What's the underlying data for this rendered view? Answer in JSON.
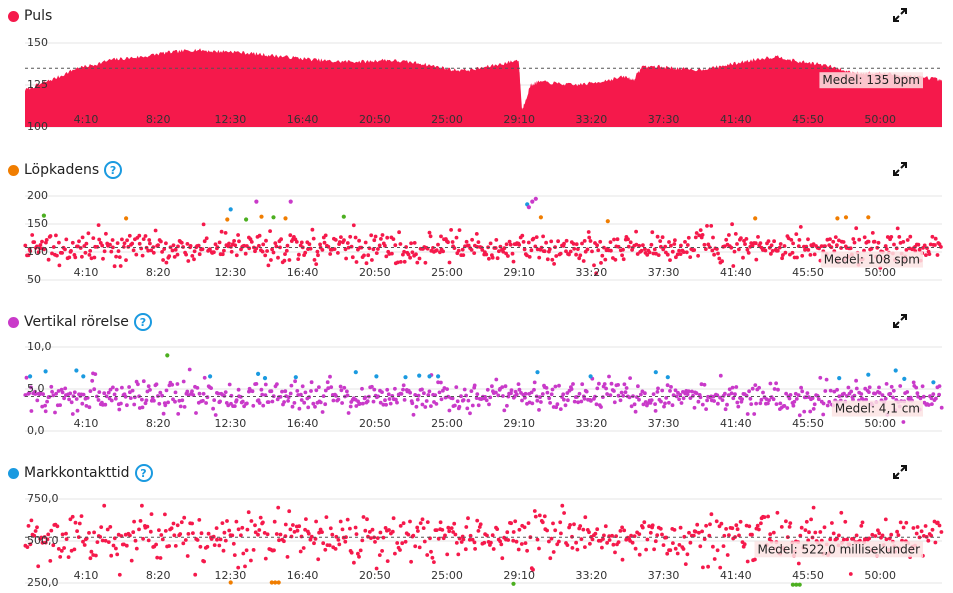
{
  "colors": {
    "red": "#f5194b",
    "orange": "#f07d00",
    "purple": "#c93ac9",
    "blue": "#1a9ae0",
    "green": "#4caf20",
    "grid": "#e4e4e4",
    "avg_line": "#555555",
    "avg_bg": "#fbe3e3"
  },
  "icons": {
    "help": "?",
    "expand": "expand-icon"
  },
  "x_ticks": [
    "4:10",
    "8:20",
    "12:30",
    "16:40",
    "20:50",
    "25:00",
    "29:10",
    "33:20",
    "37:30",
    "41:40",
    "45:50",
    "50:00"
  ],
  "chart_data": [
    {
      "id": "puls",
      "type": "area",
      "title": "Puls",
      "title_color": "#f5194b",
      "show_help": false,
      "xlim": [
        0,
        53.5
      ],
      "ylim": [
        100,
        150
      ],
      "y_ticks": [
        "150",
        "125",
        "100"
      ],
      "average": 135,
      "average_label": "Medel: 135 bpm",
      "series": [
        {
          "x": [
            0,
            1,
            2,
            3,
            4,
            5,
            6,
            7,
            8,
            9,
            10,
            11,
            12,
            13,
            14,
            15,
            16,
            17,
            18,
            19,
            20,
            21,
            22,
            23,
            24,
            25,
            26,
            27,
            28,
            28.8,
            29,
            29.5,
            30,
            31,
            32,
            33,
            34,
            35,
            35.5,
            36,
            37,
            38,
            39,
            40,
            41,
            42,
            43,
            44,
            45,
            46,
            47,
            48,
            49,
            50,
            51,
            52,
            53,
            53.5
          ],
          "y": [
            122,
            126,
            130,
            135,
            137,
            140,
            141,
            142,
            144,
            145,
            146,
            145,
            145,
            144,
            143,
            142,
            141,
            140,
            139,
            139,
            139,
            140,
            139,
            138,
            136,
            134,
            134,
            136,
            138,
            140,
            110,
            125,
            127,
            126,
            125,
            126,
            128,
            130,
            128,
            136,
            136,
            135,
            134,
            135,
            137,
            139,
            141,
            142,
            139,
            138,
            136,
            133,
            132,
            132,
            131,
            130,
            129,
            127
          ]
        }
      ]
    },
    {
      "id": "cadence",
      "type": "scatter",
      "title": "Löpkadens",
      "title_color": "#f07d00",
      "show_help": true,
      "xlim": [
        0,
        53.5
      ],
      "ylim": [
        50,
        200
      ],
      "y_ticks": [
        "200",
        "150",
        "100",
        "50"
      ],
      "average": 108,
      "average_label": "Medel: 108 spm",
      "spread": 14,
      "n_points": 720,
      "outliers": [
        {
          "x": 1.1,
          "y": 165,
          "color": "#4caf20"
        },
        {
          "x": 5.9,
          "y": 160,
          "color": "#f07d00"
        },
        {
          "x": 11.8,
          "y": 158,
          "color": "#f07d00"
        },
        {
          "x": 12.0,
          "y": 176,
          "color": "#1a9ae0"
        },
        {
          "x": 12.9,
          "y": 158,
          "color": "#4caf20"
        },
        {
          "x": 13.8,
          "y": 163,
          "color": "#f07d00"
        },
        {
          "x": 13.5,
          "y": 190,
          "color": "#c93ac9"
        },
        {
          "x": 14.5,
          "y": 162,
          "color": "#4caf20"
        },
        {
          "x": 15.2,
          "y": 160,
          "color": "#f07d00"
        },
        {
          "x": 15.5,
          "y": 190,
          "color": "#c93ac9"
        },
        {
          "x": 18.6,
          "y": 163,
          "color": "#4caf20"
        },
        {
          "x": 29.3,
          "y": 185,
          "color": "#1a9ae0"
        },
        {
          "x": 29.4,
          "y": 180,
          "color": "#c93ac9"
        },
        {
          "x": 29.6,
          "y": 190,
          "color": "#c93ac9"
        },
        {
          "x": 29.8,
          "y": 195,
          "color": "#c93ac9"
        },
        {
          "x": 30.1,
          "y": 162,
          "color": "#f07d00"
        },
        {
          "x": 34.0,
          "y": 155,
          "color": "#f07d00"
        },
        {
          "x": 42.6,
          "y": 160,
          "color": "#f07d00"
        },
        {
          "x": 47.4,
          "y": 160,
          "color": "#f07d00"
        },
        {
          "x": 47.9,
          "y": 162,
          "color": "#f07d00"
        },
        {
          "x": 49.2,
          "y": 162,
          "color": "#f07d00"
        }
      ]
    },
    {
      "id": "vertical",
      "type": "scatter",
      "title": "Vertikal rörelse",
      "title_color": "#c93ac9",
      "show_help": true,
      "xlim": [
        0,
        53.5
      ],
      "ylim": [
        0,
        10
      ],
      "y_ticks": [
        "10,0",
        "5,0",
        "0,0"
      ],
      "average": 4.1,
      "average_label": "Medel: 4,1 cm",
      "spread": 0.9,
      "n_points": 720,
      "outliers": [
        {
          "x": 0.3,
          "y": 6.5,
          "color": "#1a9ae0"
        },
        {
          "x": 1.2,
          "y": 7.1,
          "color": "#1a9ae0"
        },
        {
          "x": 3.0,
          "y": 7.2,
          "color": "#1a9ae0"
        },
        {
          "x": 3.4,
          "y": 6.5,
          "color": "#1a9ae0"
        },
        {
          "x": 8.3,
          "y": 9.0,
          "color": "#4caf20"
        },
        {
          "x": 10.8,
          "y": 6.5,
          "color": "#1a9ae0"
        },
        {
          "x": 13.6,
          "y": 6.8,
          "color": "#1a9ae0"
        },
        {
          "x": 14.0,
          "y": 6.3,
          "color": "#1a9ae0"
        },
        {
          "x": 15.8,
          "y": 6.4,
          "color": "#1a9ae0"
        },
        {
          "x": 19.3,
          "y": 7.0,
          "color": "#1a9ae0"
        },
        {
          "x": 20.5,
          "y": 6.5,
          "color": "#1a9ae0"
        },
        {
          "x": 22.2,
          "y": 6.4,
          "color": "#1a9ae0"
        },
        {
          "x": 23.0,
          "y": 6.6,
          "color": "#1a9ae0"
        },
        {
          "x": 23.6,
          "y": 6.5,
          "color": "#1a9ae0"
        },
        {
          "x": 24.1,
          "y": 6.5,
          "color": "#1a9ae0"
        },
        {
          "x": 29.9,
          "y": 7.0,
          "color": "#1a9ae0"
        },
        {
          "x": 33.0,
          "y": 6.5,
          "color": "#1a9ae0"
        },
        {
          "x": 36.8,
          "y": 7.0,
          "color": "#1a9ae0"
        },
        {
          "x": 37.5,
          "y": 6.4,
          "color": "#1a9ae0"
        },
        {
          "x": 47.5,
          "y": 6.3,
          "color": "#1a9ae0"
        },
        {
          "x": 49.2,
          "y": 6.7,
          "color": "#1a9ae0"
        },
        {
          "x": 50.8,
          "y": 7.2,
          "color": "#1a9ae0"
        },
        {
          "x": 51.3,
          "y": 6.2,
          "color": "#1a9ae0"
        },
        {
          "x": 53.0,
          "y": 5.8,
          "color": "#1a9ae0"
        }
      ]
    },
    {
      "id": "contact",
      "type": "scatter",
      "title": "Markkontakttid",
      "title_color": "#1a9ae0",
      "show_help": true,
      "xlim": [
        0,
        53.5
      ],
      "ylim": [
        250,
        750
      ],
      "y_ticks": [
        "750,0",
        "500,0",
        "250,0"
      ],
      "average": 522.0,
      "average_label": "Medel: 522,0 millisekunder",
      "spread": 70,
      "n_points": 640,
      "outliers": [
        {
          "x": 12.0,
          "y": 253,
          "color": "#f07d00"
        },
        {
          "x": 14.4,
          "y": 253,
          "color": "#f07d00"
        },
        {
          "x": 14.6,
          "y": 253,
          "color": "#f07d00"
        },
        {
          "x": 14.8,
          "y": 253,
          "color": "#f07d00"
        },
        {
          "x": 28.5,
          "y": 245,
          "color": "#4caf20"
        },
        {
          "x": 44.8,
          "y": 240,
          "color": "#4caf20"
        },
        {
          "x": 45.0,
          "y": 240,
          "color": "#4caf20"
        },
        {
          "x": 45.2,
          "y": 240,
          "color": "#4caf20"
        }
      ]
    }
  ]
}
